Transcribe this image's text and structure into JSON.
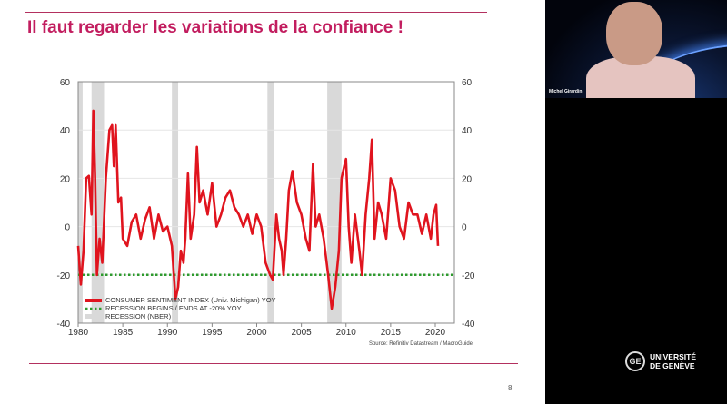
{
  "slide": {
    "title": "Il faut regarder les variations de la confiance !",
    "page_number": "8"
  },
  "webcam": {
    "participant_name": "Michel Girardin"
  },
  "logo": {
    "line1": "UNIVERSITÉ",
    "line2": "DE GENÈVE"
  },
  "colors": {
    "accent": "#c21d5f",
    "series": "#e0141e",
    "threshold": "#2e9a2e",
    "recession": "#d9d9d9"
  },
  "chart_data": {
    "type": "line",
    "title": "",
    "source": "Source: Refinitiv Datastream / MacroGuide",
    "xlim": [
      1980,
      2022.5
    ],
    "ylim": [
      -40,
      60
    ],
    "x_ticks": [
      "1980",
      "1985",
      "1990",
      "1995",
      "2000",
      "2005",
      "2010",
      "2015",
      "2020"
    ],
    "y_ticks": [
      "60",
      "40",
      "20",
      "0",
      "-20",
      "-40"
    ],
    "legend": [
      "CONSUMER SENTIMENT INDEX (Univ. Michigan) YOY",
      "RECESSION BEGINS / ENDS AT -20% YOY",
      "RECESSION (NBER)"
    ],
    "legend_position": "bottom-left",
    "threshold": -20,
    "recessions": [
      [
        1980.0,
        1980.5
      ],
      [
        1981.5,
        1982.9
      ],
      [
        1990.5,
        1991.2
      ],
      [
        2001.2,
        2001.9
      ],
      [
        2007.9,
        2009.5
      ]
    ],
    "series": [
      {
        "name": "CONSUMER SENTIMENT INDEX (Univ. Michigan) YOY",
        "x": [
          1980,
          1980.3,
          1980.6,
          1980.9,
          1981.2,
          1981.5,
          1981.7,
          1981.9,
          1982.1,
          1982.4,
          1982.7,
          1983.1,
          1983.5,
          1983.8,
          1984,
          1984.2,
          1984.5,
          1984.8,
          1985,
          1985.5,
          1986,
          1986.5,
          1987,
          1987.5,
          1988,
          1988.5,
          1989,
          1989.5,
          1990,
          1990.5,
          1990.9,
          1991.2,
          1991.5,
          1991.8,
          1992,
          1992.3,
          1992.6,
          1993,
          1993.3,
          1993.6,
          1994,
          1994.5,
          1995,
          1995.5,
          1996,
          1996.5,
          1997,
          1997.5,
          1998,
          1998.5,
          1999,
          1999.5,
          2000,
          2000.5,
          2001,
          2001.5,
          2001.8,
          2002.2,
          2002.5,
          2002.8,
          2003,
          2003.3,
          2003.6,
          2004,
          2004.5,
          2005,
          2005.5,
          2005.9,
          2006.3,
          2006.6,
          2007,
          2007.5,
          2008,
          2008.4,
          2008.8,
          2009.2,
          2009.5,
          2009.8,
          2010,
          2010.3,
          2010.6,
          2011,
          2011.5,
          2011.8,
          2012.2,
          2012.6,
          2012.9,
          2013.2,
          2013.6,
          2014,
          2014.5,
          2015,
          2015.5,
          2016,
          2016.5,
          2017,
          2017.5,
          2018,
          2018.5,
          2019,
          2019.5,
          2019.8,
          2020.1,
          2020.3
        ],
        "values": [
          -8,
          -24,
          -10,
          20,
          21,
          5,
          48,
          20,
          -20,
          -5,
          -15,
          20,
          40,
          42,
          25,
          42,
          10,
          12,
          -5,
          -8,
          2,
          5,
          -5,
          3,
          8,
          -5,
          5,
          -2,
          0,
          -8,
          -30,
          -25,
          -10,
          -15,
          -5,
          22,
          -5,
          5,
          33,
          10,
          15,
          5,
          18,
          0,
          5,
          12,
          15,
          8,
          5,
          0,
          5,
          -3,
          5,
          0,
          -15,
          -20,
          -22,
          5,
          -5,
          -10,
          -20,
          -5,
          15,
          23,
          10,
          5,
          -5,
          -10,
          26,
          0,
          5,
          -5,
          -20,
          -34,
          -25,
          -10,
          20,
          25,
          28,
          0,
          -15,
          5,
          -10,
          -20,
          5,
          20,
          36,
          -5,
          10,
          5,
          -5,
          20,
          15,
          0,
          -5,
          10,
          5,
          5,
          -3,
          5,
          -5,
          5,
          9,
          -8
        ]
      }
    ]
  }
}
